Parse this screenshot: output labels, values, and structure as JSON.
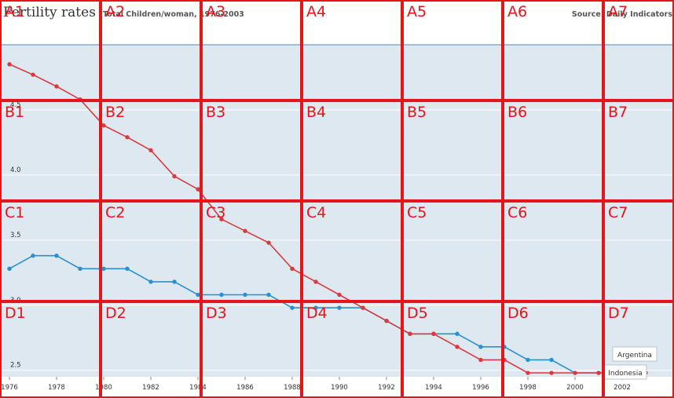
{
  "header": {
    "title": "Fertility rates",
    "subtitle": "Total Children/woman, 1976-2003",
    "source": "Source: Daily Indicators"
  },
  "grid_overlay": {
    "cols": 7,
    "rows": 4,
    "color": "#e8141b",
    "labels": [
      "A1",
      "A2",
      "A3",
      "A4",
      "A5",
      "A6",
      "A7",
      "B1",
      "B2",
      "B3",
      "B4",
      "B5",
      "B6",
      "B7",
      "C1",
      "C2",
      "C3",
      "C4",
      "C5",
      "C6",
      "C7",
      "D1",
      "D2",
      "D3",
      "D4",
      "D5",
      "D6",
      "D7"
    ]
  },
  "chart_data": {
    "type": "line",
    "title": "Fertility rates",
    "subtitle": "Total Children/woman, 1976-2003",
    "x": [
      1976,
      1977,
      1978,
      1979,
      1980,
      1981,
      1982,
      1983,
      1984,
      1985,
      1986,
      1987,
      1988,
      1989,
      1990,
      1991,
      1992,
      1993,
      1994,
      1995,
      1996,
      1997,
      1998,
      1999,
      2000,
      2001,
      2002,
      2003
    ],
    "x_ticks": [
      1976,
      1978,
      1980,
      1982,
      1984,
      1986,
      1988,
      1990,
      1992,
      1994,
      1996,
      1998,
      2000,
      2002
    ],
    "y_ticks": [
      2.5,
      3.0,
      3.5,
      4.0,
      4.5
    ],
    "xlim": [
      1975.6,
      2004.2
    ],
    "ylim": [
      2.45,
      5.0
    ],
    "grid": true,
    "plot_background": "#dde8f0",
    "series": [
      {
        "name": "Indonesia",
        "color": "#d93a3e",
        "values": [
          4.85,
          4.77,
          4.68,
          4.58,
          4.38,
          4.29,
          4.19,
          3.99,
          3.89,
          3.66,
          3.57,
          3.48,
          3.28,
          3.18,
          3.08,
          2.98,
          2.88,
          2.78,
          2.78,
          2.68,
          2.58,
          2.58,
          2.48,
          2.48,
          2.48,
          2.48,
          2.48,
          2.48
        ]
      },
      {
        "name": "Argentina",
        "color": "#2b8fd1",
        "values": [
          3.28,
          3.38,
          3.38,
          3.28,
          3.28,
          3.28,
          3.18,
          3.18,
          3.08,
          3.08,
          3.08,
          3.08,
          2.98,
          2.98,
          2.98,
          2.98,
          2.88,
          2.78,
          2.78,
          2.78,
          2.68,
          2.68,
          2.58,
          2.58,
          2.48,
          2.48,
          2.48,
          2.48
        ]
      }
    ]
  }
}
